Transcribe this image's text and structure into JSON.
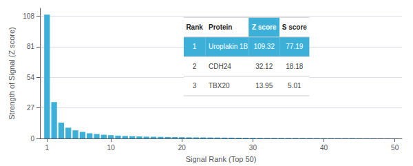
{
  "chart_data": {
    "type": "bar",
    "x": [
      1,
      2,
      3,
      4,
      5,
      6,
      7,
      8,
      9,
      10,
      11,
      12,
      13,
      14,
      15,
      16,
      17,
      18,
      19,
      20,
      21,
      22,
      23,
      24,
      25,
      26,
      27,
      28,
      29,
      30,
      31,
      32,
      33,
      34,
      35,
      36,
      37,
      38,
      39,
      40,
      41,
      42,
      43,
      44,
      45,
      46,
      47,
      48,
      49,
      50
    ],
    "values": [
      109.32,
      32.12,
      13.95,
      9.5,
      7.2,
      5.8,
      4.6,
      3.9,
      3.3,
      2.9,
      2.5,
      2.2,
      2.0,
      1.8,
      1.6,
      1.5,
      1.4,
      1.3,
      1.2,
      1.1,
      1.0,
      0.95,
      0.9,
      0.85,
      0.8,
      0.75,
      0.7,
      0.65,
      0.6,
      0.55,
      0.5,
      0.48,
      0.46,
      0.44,
      0.42,
      0.4,
      0.38,
      0.36,
      0.34,
      0.32,
      0.3,
      0.28,
      0.26,
      0.24,
      0.22,
      0.2,
      0.18,
      0.16,
      0.14,
      0.12
    ],
    "color": "#3cb0d8",
    "xlabel": "Signal Rank (Top 50)",
    "ylabel": "Strength of Signal (Z score)",
    "xlim": [
      0,
      51
    ],
    "xticks": [
      1,
      10,
      20,
      30,
      40,
      50
    ],
    "ylim": [
      0,
      115
    ],
    "yticks": [
      0,
      27,
      54,
      81,
      108
    ],
    "grid": true,
    "table": [
      [
        "Rank",
        "Protein",
        "Z score",
        "S score"
      ],
      [
        "1",
        "Uroplakin 1B",
        "109.32",
        "77.19"
      ],
      [
        "2",
        "CDH24",
        "32.12",
        "18.18"
      ],
      [
        "3",
        "TBX20",
        "13.95",
        "5.01"
      ]
    ]
  }
}
